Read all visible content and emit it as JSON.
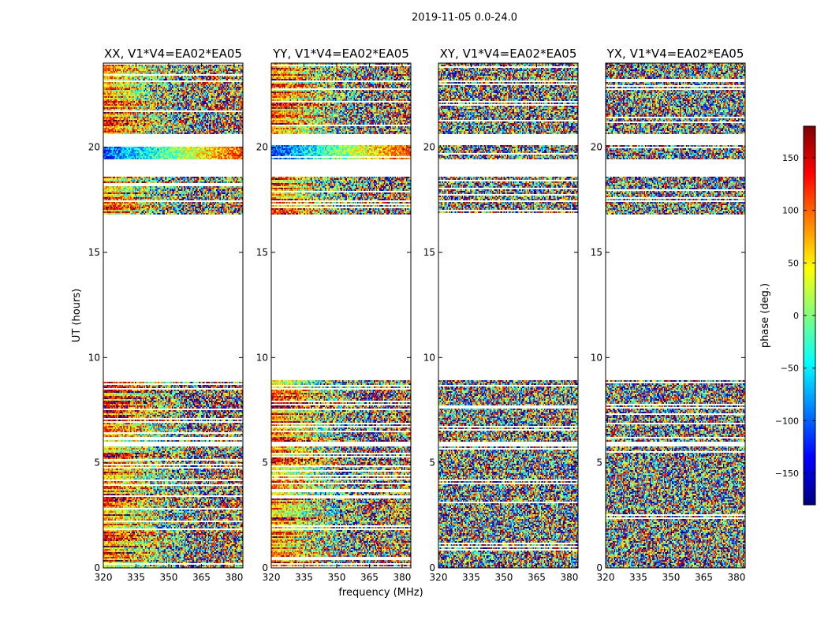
{
  "chart_data": {
    "type": "heatmap",
    "title": "2019-11-05 0.0-24.0",
    "xlabel": "frequency (MHz)",
    "ylabel": "UT (hours)",
    "xlim": [
      320,
      384
    ],
    "ylim": [
      0,
      24
    ],
    "xticks": [
      320,
      335,
      350,
      365,
      380
    ],
    "yticks": [
      0,
      5,
      10,
      15,
      20
    ],
    "colorbar": {
      "label": "phase (deg.)",
      "range": [
        -180,
        180
      ],
      "ticks": [
        150,
        100,
        50,
        0,
        -50,
        -100,
        -150
      ],
      "tick_labels": [
        "150",
        "100",
        "50",
        "0",
        "−50",
        "−100",
        "−150"
      ],
      "colormap": [
        "#00007f",
        "#0000ff",
        "#007fff",
        "#00ffff",
        "#7fff7f",
        "#ffff00",
        "#ff7f00",
        "#ff0000",
        "#7f0000"
      ]
    },
    "data_time_ranges": [
      [
        0.0,
        2.0
      ],
      [
        2.0,
        5.8
      ],
      [
        6.0,
        8.9
      ],
      [
        16.8,
        17.4
      ],
      [
        17.5,
        18.6
      ],
      [
        19.4,
        20.1
      ],
      [
        20.6,
        23.1
      ],
      [
        23.2,
        24.0
      ]
    ],
    "panels": [
      {
        "name": "xx",
        "title": "XX, V1*V4=EA02*EA05",
        "coherent": true
      },
      {
        "name": "yy",
        "title": "YY, V1*V4=EA02*EA05",
        "coherent": true
      },
      {
        "name": "xy",
        "title": "XY, V1*V4=EA02*EA05",
        "coherent": false
      },
      {
        "name": "yx",
        "title": "YX, V1*V4=EA02*EA05",
        "coherent": false
      }
    ]
  }
}
